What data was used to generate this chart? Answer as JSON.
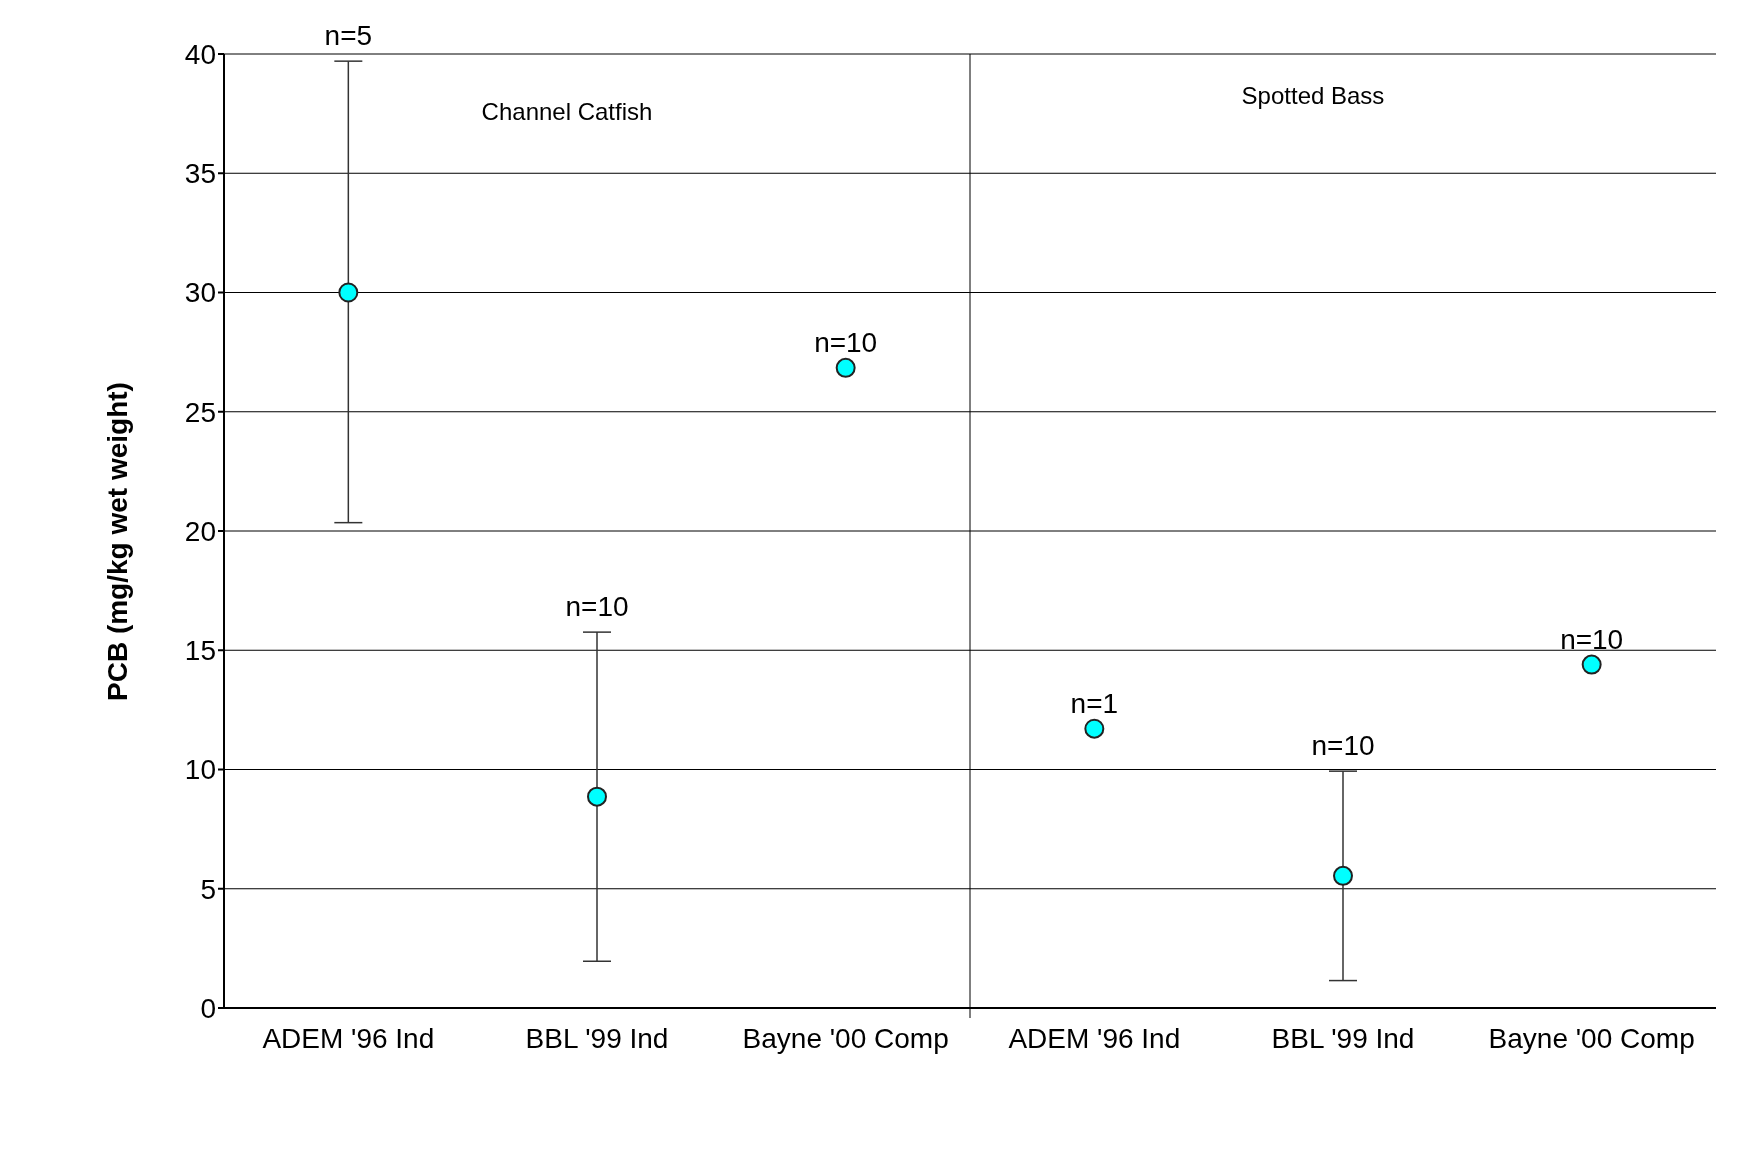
{
  "chart_data": {
    "type": "scatter",
    "ylabel": "PCB (mg/kg wet weight)",
    "categories": [
      "ADEM '96 Ind",
      "BBL '99 Ind",
      "Bayne '00 Comp",
      "ADEM '96 Ind",
      "BBL '99 Ind",
      "Bayne '00 Comp"
    ],
    "values": [
      30.0,
      8.86,
      26.84,
      11.71,
      5.54,
      14.4
    ],
    "errors": [
      [
        20.35,
        39.7
      ],
      [
        1.96,
        15.76
      ],
      null,
      null,
      [
        1.15,
        9.93
      ],
      null
    ],
    "color": "#00ffff",
    "marker": "circle",
    "legend": false,
    "grid": "y",
    "ylim": [
      0,
      40
    ],
    "yticks": [
      0,
      5,
      10,
      15,
      20,
      25,
      30,
      35,
      40
    ],
    "annotations": [
      "Channel Catfish",
      "Spotted Bass",
      {
        "text": "n=5",
        "x": "ADEM '96 Ind",
        "y": 39.7
      },
      {
        "text": "n=10",
        "x": "BBL '99 Ind",
        "y": 15.76
      },
      {
        "text": "n=10",
        "x": "Bayne '00 Comp",
        "y": 26.84
      },
      "n=1",
      "n=10",
      "n=10"
    ]
  }
}
